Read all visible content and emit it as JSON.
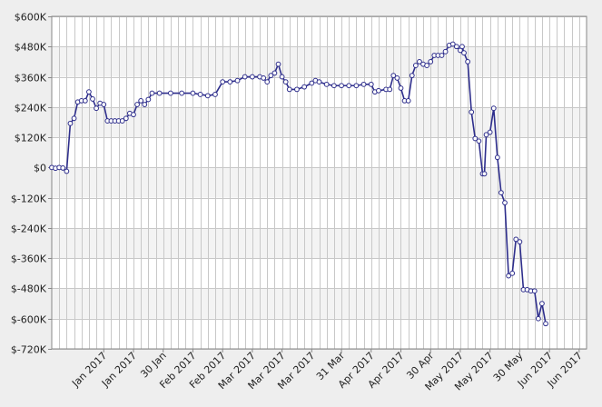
{
  "chart_data": {
    "type": "line",
    "title": "",
    "xlabel": "",
    "ylabel": "",
    "grid": true,
    "ylim": [
      -720000,
      600000
    ],
    "y_ticks": [
      {
        "value": 600000,
        "label": "$600K"
      },
      {
        "value": 480000,
        "label": "$480K"
      },
      {
        "value": 360000,
        "label": "$360K"
      },
      {
        "value": 240000,
        "label": "$240K"
      },
      {
        "value": 120000,
        "label": "$120K"
      },
      {
        "value": 0,
        "label": "$0"
      },
      {
        "value": -120000,
        "label": "$-120K"
      },
      {
        "value": -240000,
        "label": "$-240K"
      },
      {
        "value": -360000,
        "label": "$-360K"
      },
      {
        "value": -480000,
        "label": "$-480K"
      },
      {
        "value": -600000,
        "label": "$-600K"
      },
      {
        "value": -720000,
        "label": "$-720K"
      }
    ],
    "x_ticks": [
      {
        "day": 14,
        "label": "Jan 2017"
      },
      {
        "day": 22,
        "label": "Jan 2017"
      },
      {
        "day": 30,
        "label": "30 Jan"
      },
      {
        "day": 38,
        "label": "Feb 2017"
      },
      {
        "day": 46,
        "label": "Feb 2017"
      },
      {
        "day": 54,
        "label": "Mar 2017"
      },
      {
        "day": 62,
        "label": "Mar 2017"
      },
      {
        "day": 70,
        "label": "Mar 2017"
      },
      {
        "day": 78,
        "label": "31 Mar"
      },
      {
        "day": 86,
        "label": "Apr 2017"
      },
      {
        "day": 94,
        "label": "Apr 2017"
      },
      {
        "day": 102,
        "label": "30 Apr"
      },
      {
        "day": 110,
        "label": "May 2017"
      },
      {
        "day": 118,
        "label": "May 2017"
      },
      {
        "day": 126,
        "label": "30 May"
      },
      {
        "day": 134,
        "label": "Jun 2017"
      },
      {
        "day": 142,
        "label": "Jun 2017"
      }
    ],
    "x_range_days": [
      0,
      144
    ],
    "x_grid_step_days": 2,
    "series": [
      {
        "color": "#2e2e8c",
        "marker_color": "#ffffff",
        "points": [
          [
            0,
            0
          ],
          [
            1,
            -3000
          ],
          [
            2,
            0
          ],
          [
            3,
            -2000
          ],
          [
            4,
            -15000
          ],
          [
            5,
            175000
          ],
          [
            6,
            195000
          ],
          [
            7,
            260000
          ],
          [
            8,
            265000
          ],
          [
            9,
            265000
          ],
          [
            10,
            300000
          ],
          [
            11,
            272000
          ],
          [
            12,
            235000
          ],
          [
            13,
            255000
          ],
          [
            14,
            250000
          ],
          [
            15,
            185000
          ],
          [
            16,
            185000
          ],
          [
            17,
            185000
          ],
          [
            18,
            185000
          ],
          [
            19,
            185000
          ],
          [
            20,
            195000
          ],
          [
            21,
            215000
          ],
          [
            22,
            210000
          ],
          [
            23,
            250000
          ],
          [
            24,
            265000
          ],
          [
            25,
            250000
          ],
          [
            26,
            270000
          ],
          [
            27,
            295000
          ],
          [
            29,
            295000
          ],
          [
            32,
            295000
          ],
          [
            35,
            295000
          ],
          [
            38,
            295000
          ],
          [
            40,
            290000
          ],
          [
            42,
            285000
          ],
          [
            44,
            290000
          ],
          [
            46,
            340000
          ],
          [
            48,
            340000
          ],
          [
            50,
            345000
          ],
          [
            52,
            360000
          ],
          [
            54,
            360000
          ],
          [
            56,
            360000
          ],
          [
            57,
            355000
          ],
          [
            58,
            340000
          ],
          [
            59,
            365000
          ],
          [
            60,
            375000
          ],
          [
            61,
            410000
          ],
          [
            62,
            360000
          ],
          [
            63,
            340000
          ],
          [
            64,
            310000
          ],
          [
            66,
            310000
          ],
          [
            68,
            320000
          ],
          [
            70,
            335000
          ],
          [
            71,
            345000
          ],
          [
            72,
            340000
          ],
          [
            74,
            330000
          ],
          [
            76,
            325000
          ],
          [
            78,
            325000
          ],
          [
            80,
            325000
          ],
          [
            82,
            325000
          ],
          [
            84,
            330000
          ],
          [
            86,
            330000
          ],
          [
            87,
            300000
          ],
          [
            88,
            305000
          ],
          [
            90,
            310000
          ],
          [
            91,
            310000
          ],
          [
            92,
            365000
          ],
          [
            93,
            355000
          ],
          [
            94,
            315000
          ],
          [
            95,
            265000
          ],
          [
            96,
            265000
          ],
          [
            97,
            365000
          ],
          [
            98,
            405000
          ],
          [
            99,
            420000
          ],
          [
            100,
            410000
          ],
          [
            101,
            405000
          ],
          [
            102,
            420000
          ],
          [
            103,
            445000
          ],
          [
            104,
            445000
          ],
          [
            105,
            445000
          ],
          [
            106,
            460000
          ],
          [
            107,
            485000
          ],
          [
            108,
            490000
          ],
          [
            109,
            480000
          ],
          [
            110,
            465000
          ],
          [
            110.5,
            480000
          ],
          [
            111,
            455000
          ],
          [
            112,
            420000
          ],
          [
            113,
            220000
          ],
          [
            114,
            115000
          ],
          [
            115,
            105000
          ],
          [
            116,
            -25000
          ],
          [
            116.5,
            -25000
          ],
          [
            117,
            130000
          ],
          [
            118,
            140000
          ],
          [
            119,
            235000
          ],
          [
            120,
            40000
          ],
          [
            121,
            -100000
          ],
          [
            122,
            -140000
          ],
          [
            123,
            -430000
          ],
          [
            124,
            -420000
          ],
          [
            125,
            -285000
          ],
          [
            126,
            -295000
          ],
          [
            127,
            -485000
          ],
          [
            128,
            -485000
          ],
          [
            129,
            -490000
          ],
          [
            130,
            -490000
          ],
          [
            131,
            -600000
          ],
          [
            132,
            -540000
          ],
          [
            133,
            -620000
          ]
        ]
      }
    ]
  }
}
